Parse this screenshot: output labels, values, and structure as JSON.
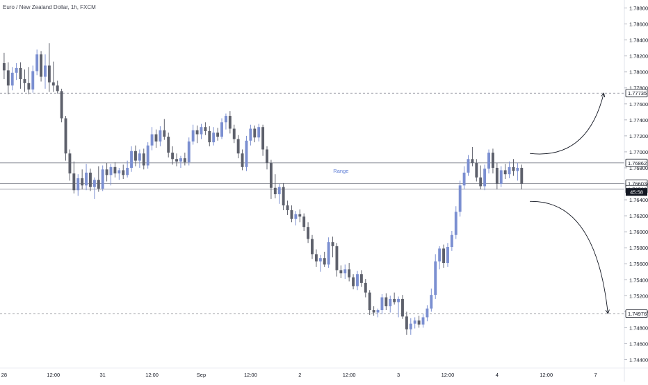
{
  "symbol_title": "Euro / New Zealand Dollar, 1h, FXCM",
  "chart_data": {
    "type": "candlestick",
    "title": "Euro / New Zealand Dollar, 1h, FXCM",
    "ylim": [
      1.743,
      1.789
    ],
    "y_ticks": [
      "1.74400",
      "1.74600",
      "1.74800",
      "1.75000",
      "1.75200",
      "1.75400",
      "1.75600",
      "1.75800",
      "1.76000",
      "1.76200",
      "1.76400",
      "1.76600",
      "1.76800",
      "1.77000",
      "1.77200",
      "1.77400",
      "1.77600",
      "1.77800",
      "1.78000",
      "1.78200",
      "1.78400",
      "1.78600",
      "1.78800"
    ],
    "x_ticks": [
      {
        "label": "28",
        "x": 0
      },
      {
        "label": "12:00",
        "x": 12
      },
      {
        "label": "31",
        "x": 24
      },
      {
        "label": "12:00",
        "x": 36
      },
      {
        "label": "Sep",
        "x": 48
      },
      {
        "label": "12:00",
        "x": 60
      },
      {
        "label": "2",
        "x": 72
      },
      {
        "label": "12:00",
        "x": 84
      },
      {
        "label": "3",
        "x": 96
      },
      {
        "label": "12:00",
        "x": 108
      },
      {
        "label": "4",
        "x": 120
      },
      {
        "label": "12:00",
        "x": 132
      },
      {
        "label": "7",
        "x": 144
      }
    ],
    "x_range": [
      -1,
      151
    ],
    "colors": {
      "up": "#7b8fd1",
      "down": "#5d606b"
    },
    "candles": [
      {
        "x": 0,
        "o": 1.7811,
        "h": 1.7824,
        "l": 1.7791,
        "c": 1.7802
      },
      {
        "x": 1,
        "o": 1.7802,
        "h": 1.7812,
        "l": 1.7772,
        "c": 1.7783
      },
      {
        "x": 2,
        "o": 1.7783,
        "h": 1.7806,
        "l": 1.7777,
        "c": 1.7799
      },
      {
        "x": 3,
        "o": 1.7799,
        "h": 1.7811,
        "l": 1.779,
        "c": 1.7805
      },
      {
        "x": 4,
        "o": 1.7805,
        "h": 1.7812,
        "l": 1.7779,
        "c": 1.7791
      },
      {
        "x": 5,
        "o": 1.7791,
        "h": 1.7803,
        "l": 1.7775,
        "c": 1.7786
      },
      {
        "x": 6,
        "o": 1.7786,
        "h": 1.7806,
        "l": 1.7772,
        "c": 1.7778
      },
      {
        "x": 7,
        "o": 1.7778,
        "h": 1.7808,
        "l": 1.7774,
        "c": 1.7801
      },
      {
        "x": 8,
        "o": 1.7801,
        "h": 1.7828,
        "l": 1.7796,
        "c": 1.7822
      },
      {
        "x": 9,
        "o": 1.7822,
        "h": 1.7826,
        "l": 1.7788,
        "c": 1.7794
      },
      {
        "x": 10,
        "o": 1.7794,
        "h": 1.7822,
        "l": 1.7779,
        "c": 1.7808
      },
      {
        "x": 11,
        "o": 1.7808,
        "h": 1.7836,
        "l": 1.7775,
        "c": 1.7787
      },
      {
        "x": 12,
        "o": 1.7787,
        "h": 1.7813,
        "l": 1.7775,
        "c": 1.7783
      },
      {
        "x": 13,
        "o": 1.7783,
        "h": 1.7789,
        "l": 1.7773,
        "c": 1.7776
      },
      {
        "x": 14,
        "o": 1.7776,
        "h": 1.7779,
        "l": 1.7737,
        "c": 1.7742
      },
      {
        "x": 15,
        "o": 1.7742,
        "h": 1.7745,
        "l": 1.7689,
        "c": 1.7698
      },
      {
        "x": 16,
        "o": 1.7698,
        "h": 1.7703,
        "l": 1.7664,
        "c": 1.7673
      },
      {
        "x": 17,
        "o": 1.7673,
        "h": 1.7688,
        "l": 1.7648,
        "c": 1.7652
      },
      {
        "x": 18,
        "o": 1.7652,
        "h": 1.7672,
        "l": 1.7645,
        "c": 1.7667
      },
      {
        "x": 19,
        "o": 1.7667,
        "h": 1.7678,
        "l": 1.7653,
        "c": 1.7658
      },
      {
        "x": 20,
        "o": 1.7658,
        "h": 1.7685,
        "l": 1.7652,
        "c": 1.7674
      },
      {
        "x": 21,
        "o": 1.7674,
        "h": 1.7679,
        "l": 1.7651,
        "c": 1.7656
      },
      {
        "x": 22,
        "o": 1.7656,
        "h": 1.7668,
        "l": 1.7641,
        "c": 1.7665
      },
      {
        "x": 23,
        "o": 1.7665,
        "h": 1.7682,
        "l": 1.765,
        "c": 1.7654
      },
      {
        "x": 24,
        "o": 1.7654,
        "h": 1.7683,
        "l": 1.7651,
        "c": 1.7678
      },
      {
        "x": 25,
        "o": 1.7678,
        "h": 1.7686,
        "l": 1.7663,
        "c": 1.7671
      },
      {
        "x": 26,
        "o": 1.7671,
        "h": 1.7685,
        "l": 1.7658,
        "c": 1.7681
      },
      {
        "x": 27,
        "o": 1.7681,
        "h": 1.7687,
        "l": 1.7668,
        "c": 1.7673
      },
      {
        "x": 28,
        "o": 1.7673,
        "h": 1.768,
        "l": 1.7665,
        "c": 1.7677
      },
      {
        "x": 29,
        "o": 1.7677,
        "h": 1.7684,
        "l": 1.7666,
        "c": 1.7671
      },
      {
        "x": 30,
        "o": 1.7671,
        "h": 1.7689,
        "l": 1.7668,
        "c": 1.768
      },
      {
        "x": 31,
        "o": 1.768,
        "h": 1.7707,
        "l": 1.7675,
        "c": 1.7701
      },
      {
        "x": 32,
        "o": 1.7701,
        "h": 1.7708,
        "l": 1.7682,
        "c": 1.7689
      },
      {
        "x": 33,
        "o": 1.7689,
        "h": 1.7703,
        "l": 1.768,
        "c": 1.7698
      },
      {
        "x": 34,
        "o": 1.7698,
        "h": 1.7704,
        "l": 1.7678,
        "c": 1.7683
      },
      {
        "x": 35,
        "o": 1.7683,
        "h": 1.7712,
        "l": 1.7679,
        "c": 1.7708
      },
      {
        "x": 36,
        "o": 1.7708,
        "h": 1.7731,
        "l": 1.7702,
        "c": 1.7722
      },
      {
        "x": 37,
        "o": 1.7722,
        "h": 1.7728,
        "l": 1.7705,
        "c": 1.7713
      },
      {
        "x": 38,
        "o": 1.7713,
        "h": 1.7732,
        "l": 1.7707,
        "c": 1.7727
      },
      {
        "x": 39,
        "o": 1.7727,
        "h": 1.7741,
        "l": 1.7715,
        "c": 1.7719
      },
      {
        "x": 40,
        "o": 1.7719,
        "h": 1.7724,
        "l": 1.7693,
        "c": 1.7699
      },
      {
        "x": 41,
        "o": 1.7699,
        "h": 1.7707,
        "l": 1.7684,
        "c": 1.7691
      },
      {
        "x": 42,
        "o": 1.7691,
        "h": 1.7698,
        "l": 1.7682,
        "c": 1.7688
      },
      {
        "x": 43,
        "o": 1.7688,
        "h": 1.7695,
        "l": 1.768,
        "c": 1.7692
      },
      {
        "x": 44,
        "o": 1.7692,
        "h": 1.7699,
        "l": 1.7683,
        "c": 1.7687
      },
      {
        "x": 45,
        "o": 1.7687,
        "h": 1.7718,
        "l": 1.7683,
        "c": 1.7713
      },
      {
        "x": 46,
        "o": 1.7713,
        "h": 1.7734,
        "l": 1.7709,
        "c": 1.7727
      },
      {
        "x": 47,
        "o": 1.7727,
        "h": 1.7733,
        "l": 1.7711,
        "c": 1.7722
      },
      {
        "x": 48,
        "o": 1.7722,
        "h": 1.7735,
        "l": 1.7716,
        "c": 1.7731
      },
      {
        "x": 49,
        "o": 1.7731,
        "h": 1.7737,
        "l": 1.7721,
        "c": 1.7726
      },
      {
        "x": 50,
        "o": 1.7726,
        "h": 1.7732,
        "l": 1.7707,
        "c": 1.7712
      },
      {
        "x": 51,
        "o": 1.7712,
        "h": 1.7731,
        "l": 1.7708,
        "c": 1.7724
      },
      {
        "x": 52,
        "o": 1.7724,
        "h": 1.773,
        "l": 1.7714,
        "c": 1.7719
      },
      {
        "x": 53,
        "o": 1.7719,
        "h": 1.7742,
        "l": 1.7716,
        "c": 1.7737
      },
      {
        "x": 54,
        "o": 1.7737,
        "h": 1.7748,
        "l": 1.7728,
        "c": 1.7745
      },
      {
        "x": 55,
        "o": 1.7745,
        "h": 1.7751,
        "l": 1.7723,
        "c": 1.7729
      },
      {
        "x": 56,
        "o": 1.7729,
        "h": 1.7734,
        "l": 1.7711,
        "c": 1.7716
      },
      {
        "x": 57,
        "o": 1.7716,
        "h": 1.7721,
        "l": 1.7692,
        "c": 1.7698
      },
      {
        "x": 58,
        "o": 1.7698,
        "h": 1.7703,
        "l": 1.7677,
        "c": 1.7681
      },
      {
        "x": 59,
        "o": 1.7681,
        "h": 1.772,
        "l": 1.7676,
        "c": 1.7714
      },
      {
        "x": 60,
        "o": 1.7714,
        "h": 1.7734,
        "l": 1.7708,
        "c": 1.7729
      },
      {
        "x": 61,
        "o": 1.7729,
        "h": 1.7733,
        "l": 1.7712,
        "c": 1.7718
      },
      {
        "x": 62,
        "o": 1.7718,
        "h": 1.7735,
        "l": 1.7713,
        "c": 1.7731
      },
      {
        "x": 63,
        "o": 1.7731,
        "h": 1.7734,
        "l": 1.7695,
        "c": 1.7703
      },
      {
        "x": 64,
        "o": 1.7703,
        "h": 1.7707,
        "l": 1.7678,
        "c": 1.7686
      },
      {
        "x": 65,
        "o": 1.7686,
        "h": 1.769,
        "l": 1.7641,
        "c": 1.7655
      },
      {
        "x": 66,
        "o": 1.7655,
        "h": 1.7672,
        "l": 1.7642,
        "c": 1.7647
      },
      {
        "x": 67,
        "o": 1.7647,
        "h": 1.766,
        "l": 1.7635,
        "c": 1.7656
      },
      {
        "x": 68,
        "o": 1.7656,
        "h": 1.7661,
        "l": 1.7627,
        "c": 1.7633
      },
      {
        "x": 69,
        "o": 1.7633,
        "h": 1.7639,
        "l": 1.7621,
        "c": 1.7627
      },
      {
        "x": 70,
        "o": 1.7627,
        "h": 1.7633,
        "l": 1.7612,
        "c": 1.7616
      },
      {
        "x": 71,
        "o": 1.7616,
        "h": 1.7626,
        "l": 1.7608,
        "c": 1.7622
      },
      {
        "x": 72,
        "o": 1.7622,
        "h": 1.7628,
        "l": 1.7612,
        "c": 1.7619
      },
      {
        "x": 73,
        "o": 1.7619,
        "h": 1.7623,
        "l": 1.7601,
        "c": 1.7606
      },
      {
        "x": 74,
        "o": 1.7606,
        "h": 1.7612,
        "l": 1.7586,
        "c": 1.7591
      },
      {
        "x": 75,
        "o": 1.7591,
        "h": 1.7596,
        "l": 1.7566,
        "c": 1.7572
      },
      {
        "x": 76,
        "o": 1.7572,
        "h": 1.7578,
        "l": 1.7556,
        "c": 1.7563
      },
      {
        "x": 77,
        "o": 1.7563,
        "h": 1.7571,
        "l": 1.755,
        "c": 1.7567
      },
      {
        "x": 78,
        "o": 1.7567,
        "h": 1.7575,
        "l": 1.7556,
        "c": 1.7559
      },
      {
        "x": 79,
        "o": 1.7559,
        "h": 1.7593,
        "l": 1.7555,
        "c": 1.7587
      },
      {
        "x": 80,
        "o": 1.7587,
        "h": 1.7594,
        "l": 1.7568,
        "c": 1.7582
      },
      {
        "x": 81,
        "o": 1.7582,
        "h": 1.7586,
        "l": 1.7544,
        "c": 1.7552
      },
      {
        "x": 82,
        "o": 1.7552,
        "h": 1.7558,
        "l": 1.7542,
        "c": 1.7548
      },
      {
        "x": 83,
        "o": 1.7548,
        "h": 1.7559,
        "l": 1.7541,
        "c": 1.7553
      },
      {
        "x": 84,
        "o": 1.7553,
        "h": 1.7561,
        "l": 1.7538,
        "c": 1.7543
      },
      {
        "x": 85,
        "o": 1.7543,
        "h": 1.7547,
        "l": 1.7528,
        "c": 1.7532
      },
      {
        "x": 86,
        "o": 1.7532,
        "h": 1.7551,
        "l": 1.7527,
        "c": 1.7547
      },
      {
        "x": 87,
        "o": 1.7547,
        "h": 1.7552,
        "l": 1.7531,
        "c": 1.7536
      },
      {
        "x": 88,
        "o": 1.7536,
        "h": 1.7541,
        "l": 1.7518,
        "c": 1.7524
      },
      {
        "x": 89,
        "o": 1.7524,
        "h": 1.7527,
        "l": 1.7496,
        "c": 1.7502
      },
      {
        "x": 90,
        "o": 1.7502,
        "h": 1.7507,
        "l": 1.7495,
        "c": 1.7499
      },
      {
        "x": 91,
        "o": 1.7499,
        "h": 1.7504,
        "l": 1.7493,
        "c": 1.7502
      },
      {
        "x": 92,
        "o": 1.7502,
        "h": 1.7522,
        "l": 1.7497,
        "c": 1.7518
      },
      {
        "x": 93,
        "o": 1.7518,
        "h": 1.7523,
        "l": 1.7502,
        "c": 1.7507
      },
      {
        "x": 94,
        "o": 1.7507,
        "h": 1.752,
        "l": 1.7499,
        "c": 1.7516
      },
      {
        "x": 95,
        "o": 1.7516,
        "h": 1.7524,
        "l": 1.7509,
        "c": 1.7512
      },
      {
        "x": 96,
        "o": 1.7512,
        "h": 1.7519,
        "l": 1.7493,
        "c": 1.7516
      },
      {
        "x": 97,
        "o": 1.7516,
        "h": 1.7521,
        "l": 1.7491,
        "c": 1.7494
      },
      {
        "x": 98,
        "o": 1.7494,
        "h": 1.75,
        "l": 1.7471,
        "c": 1.7478
      },
      {
        "x": 99,
        "o": 1.7478,
        "h": 1.7492,
        "l": 1.7471,
        "c": 1.7485
      },
      {
        "x": 100,
        "o": 1.7485,
        "h": 1.7493,
        "l": 1.7479,
        "c": 1.7489
      },
      {
        "x": 101,
        "o": 1.7489,
        "h": 1.7495,
        "l": 1.748,
        "c": 1.7484
      },
      {
        "x": 102,
        "o": 1.7484,
        "h": 1.7497,
        "l": 1.748,
        "c": 1.7493
      },
      {
        "x": 103,
        "o": 1.7493,
        "h": 1.7508,
        "l": 1.7488,
        "c": 1.7504
      },
      {
        "x": 104,
        "o": 1.7504,
        "h": 1.7529,
        "l": 1.75,
        "c": 1.7521
      },
      {
        "x": 105,
        "o": 1.7521,
        "h": 1.7572,
        "l": 1.7516,
        "c": 1.7563
      },
      {
        "x": 106,
        "o": 1.7563,
        "h": 1.7582,
        "l": 1.7553,
        "c": 1.7579
      },
      {
        "x": 107,
        "o": 1.7579,
        "h": 1.7584,
        "l": 1.7555,
        "c": 1.7561
      },
      {
        "x": 108,
        "o": 1.7561,
        "h": 1.7586,
        "l": 1.7556,
        "c": 1.7581
      },
      {
        "x": 109,
        "o": 1.7581,
        "h": 1.7601,
        "l": 1.7576,
        "c": 1.7596
      },
      {
        "x": 110,
        "o": 1.7596,
        "h": 1.7632,
        "l": 1.7591,
        "c": 1.7625
      },
      {
        "x": 111,
        "o": 1.7625,
        "h": 1.7664,
        "l": 1.7619,
        "c": 1.7658
      },
      {
        "x": 112,
        "o": 1.7658,
        "h": 1.7682,
        "l": 1.7653,
        "c": 1.7674
      },
      {
        "x": 113,
        "o": 1.7674,
        "h": 1.7696,
        "l": 1.767,
        "c": 1.7691
      },
      {
        "x": 114,
        "o": 1.7691,
        "h": 1.7706,
        "l": 1.7682,
        "c": 1.7686
      },
      {
        "x": 115,
        "o": 1.7686,
        "h": 1.7691,
        "l": 1.7663,
        "c": 1.7668
      },
      {
        "x": 116,
        "o": 1.7668,
        "h": 1.7683,
        "l": 1.7653,
        "c": 1.7657
      },
      {
        "x": 117,
        "o": 1.7657,
        "h": 1.7684,
        "l": 1.7652,
        "c": 1.7679
      },
      {
        "x": 118,
        "o": 1.7679,
        "h": 1.7703,
        "l": 1.7673,
        "c": 1.7699
      },
      {
        "x": 119,
        "o": 1.7699,
        "h": 1.7704,
        "l": 1.7673,
        "c": 1.768
      },
      {
        "x": 120,
        "o": 1.768,
        "h": 1.7686,
        "l": 1.7653,
        "c": 1.766
      },
      {
        "x": 121,
        "o": 1.766,
        "h": 1.7682,
        "l": 1.7656,
        "c": 1.7677
      },
      {
        "x": 122,
        "o": 1.7677,
        "h": 1.7685,
        "l": 1.7666,
        "c": 1.7672
      },
      {
        "x": 123,
        "o": 1.7672,
        "h": 1.7688,
        "l": 1.7667,
        "c": 1.7681
      },
      {
        "x": 124,
        "o": 1.7681,
        "h": 1.7691,
        "l": 1.767,
        "c": 1.7676
      },
      {
        "x": 125,
        "o": 1.7676,
        "h": 1.7686,
        "l": 1.7664,
        "c": 1.768
      },
      {
        "x": 126,
        "o": 1.768,
        "h": 1.7684,
        "l": 1.7653,
        "c": 1.766
      }
    ],
    "levels": [
      {
        "name": "upper-target-line",
        "y": 1.77735,
        "style": "dashed",
        "label": "1.77735",
        "label_bg": "#ffffff",
        "label_color": "#131722",
        "label_border": "#131722"
      },
      {
        "name": "range-top-line",
        "y": 1.76862,
        "style": "solid",
        "label": "1.76862",
        "label_bg": "#ffffff",
        "label_color": "#131722",
        "label_border": "#131722"
      },
      {
        "name": "current-price-line",
        "y": 1.76603,
        "style": "solid",
        "label": "1.76603",
        "label_bg": "#ffffff",
        "label_color": "#131722",
        "label_border": "#131722"
      },
      {
        "name": "range-bottom-line",
        "y": 1.76533,
        "style": "solid",
        "label": "1.76533",
        "label_bg": "#ffffff",
        "label_color": "#131722",
        "label_border": "#131722"
      },
      {
        "name": "lower-target-line",
        "y": 1.74976,
        "style": "dashed",
        "label": "1.74976",
        "label_bg": "#ffffff",
        "label_color": "#131722",
        "label_border": "#131722"
      }
    ],
    "range_label": {
      "text": "Range",
      "x": 82,
      "y": 1.7674,
      "color": "#5b7bd5"
    },
    "countdown": {
      "text": "45:58",
      "bg": "#131722",
      "color": "#ffffff"
    },
    "arrows": [
      {
        "name": "arrow-up-curve",
        "from": [
          128,
          1.7698
        ],
        "ctrl": [
          142,
          1.769
        ],
        "to": [
          146,
          1.77735
        ]
      },
      {
        "name": "arrow-down-curve",
        "from": [
          128,
          1.7638
        ],
        "ctrl": [
          144,
          1.764
        ],
        "to": [
          147,
          1.74976
        ]
      }
    ],
    "colors_ui": {
      "axis_text": "#131722",
      "axis_line": "#e0e3eb",
      "level_line": "#787b86",
      "arrow": "#131722"
    }
  }
}
